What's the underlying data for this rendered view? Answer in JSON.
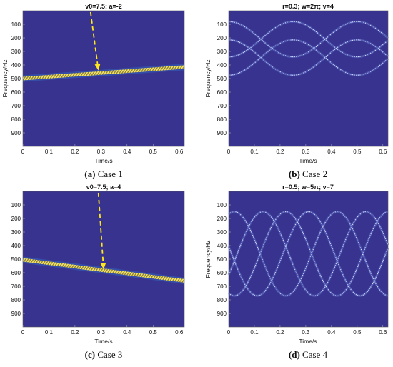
{
  "panels": [
    {
      "title": "v0=7.5; a=-2",
      "caption_letter": "(a)",
      "caption_text": "Case 1",
      "ylabel": "Frequency/Hz",
      "xlabel": "Time/s",
      "xticks": [
        "0",
        "0.1",
        "0.2",
        "0.3",
        "0.4",
        "0.5",
        "0.6"
      ],
      "yticks": [
        "100",
        "200",
        "300",
        "400",
        "500",
        "600",
        "700",
        "800",
        "900"
      ]
    },
    {
      "title": "r=0.3; w=2π; v=4",
      "caption_letter": "(b)",
      "caption_text": "Case 2",
      "ylabel": "Frequency/Hz",
      "xlabel": "Time/s",
      "xticks": [
        "0",
        "0.1",
        "0.2",
        "0.3",
        "0.4",
        "0.5",
        "0.6"
      ],
      "yticks": [
        "100",
        "200",
        "300",
        "400",
        "500",
        "600",
        "700",
        "800",
        "900"
      ]
    },
    {
      "title": "v0=7.5; a=4",
      "caption_letter": "(c)",
      "caption_text": "Case 3",
      "ylabel": "Frequency/Hz",
      "xlabel": "Time/s",
      "xticks": [
        "0",
        "0.1",
        "0.2",
        "0.3",
        "0.4",
        "0.5",
        "0.6"
      ],
      "yticks": [
        "100",
        "200",
        "300",
        "400",
        "500",
        "600",
        "700",
        "800",
        "900"
      ]
    },
    {
      "title": "r=0.5; w=5π; v=7",
      "caption_letter": "(d)",
      "caption_text": "Case 4",
      "ylabel": "Frequency/Hz",
      "xlabel": "Time/s",
      "xticks": [
        "0",
        "0.1",
        "0.2",
        "0.3",
        "0.4",
        "0.5",
        "0.6"
      ],
      "yticks": [
        "100",
        "200",
        "300",
        "400",
        "500",
        "600",
        "700",
        "800",
        "900"
      ]
    }
  ],
  "chart_data": [
    {
      "type": "heatmap",
      "title": "v0=7.5; a=-2",
      "xlabel": "Time/s",
      "ylabel": "Frequency/Hz",
      "xlim": [
        0,
        0.62
      ],
      "ylim": [
        0,
        1000
      ],
      "y_inverted": true,
      "background": "#38338f",
      "ridges": [
        {
          "x": [
            0,
            0.62
          ],
          "y": [
            500,
            415
          ]
        }
      ],
      "annotation": {
        "type": "arrow",
        "color": "#ffe81a",
        "from": [
          0.26,
          10
        ],
        "to": [
          0.29,
          440
        ]
      }
    },
    {
      "type": "heatmap",
      "title": "r=0.3; w=2π; v=4",
      "xlabel": "Time/s",
      "ylabel": "Frequency/Hz",
      "xlim": [
        0,
        0.62
      ],
      "ylim": [
        0,
        1000
      ],
      "y_inverted": true,
      "background": "#38338f",
      "ridges": [
        {
          "type": "oscillation",
          "center": 210,
          "amplitude": 130,
          "period": 0.5,
          "phase_deg": 0
        },
        {
          "type": "oscillation",
          "center": 210,
          "amplitude": 130,
          "period": 0.5,
          "phase_deg": 180
        },
        {
          "type": "oscillation",
          "center": 345,
          "amplitude": 130,
          "period": 0.5,
          "phase_deg": 0
        },
        {
          "type": "oscillation",
          "center": 345,
          "amplitude": 130,
          "period": 0.5,
          "phase_deg": 180
        }
      ]
    },
    {
      "type": "heatmap",
      "title": "v0=7.5; a=4",
      "xlabel": "Time/s",
      "ylabel": "Frequency/Hz",
      "xlim": [
        0,
        0.62
      ],
      "ylim": [
        0,
        1000
      ],
      "y_inverted": true,
      "background": "#38338f",
      "ridges": [
        {
          "x": [
            0,
            0.62
          ],
          "y": [
            505,
            660
          ]
        }
      ],
      "annotation": {
        "type": "arrow",
        "color": "#ffe81a",
        "from": [
          0.29,
          10
        ],
        "to": [
          0.31,
          575
        ]
      }
    },
    {
      "type": "heatmap",
      "title": "r=0.5; w=5π; v=7",
      "xlabel": "Time/s",
      "ylabel": "Frequency/Hz",
      "xlim": [
        0,
        0.62
      ],
      "ylim": [
        0,
        1000
      ],
      "y_inverted": true,
      "background": "#38338f",
      "ridges": [
        {
          "type": "oscillation",
          "center": 460,
          "amplitude": 310,
          "period": 0.4,
          "phase_deg": 60
        },
        {
          "type": "oscillation",
          "center": 460,
          "amplitude": 310,
          "period": 0.4,
          "phase_deg": 160
        },
        {
          "type": "oscillation",
          "center": 460,
          "amplitude": 310,
          "period": 0.4,
          "phase_deg": 260
        },
        {
          "type": "oscillation",
          "center": 460,
          "amplitude": 310,
          "period": 0.4,
          "phase_deg": 340
        }
      ]
    }
  ]
}
